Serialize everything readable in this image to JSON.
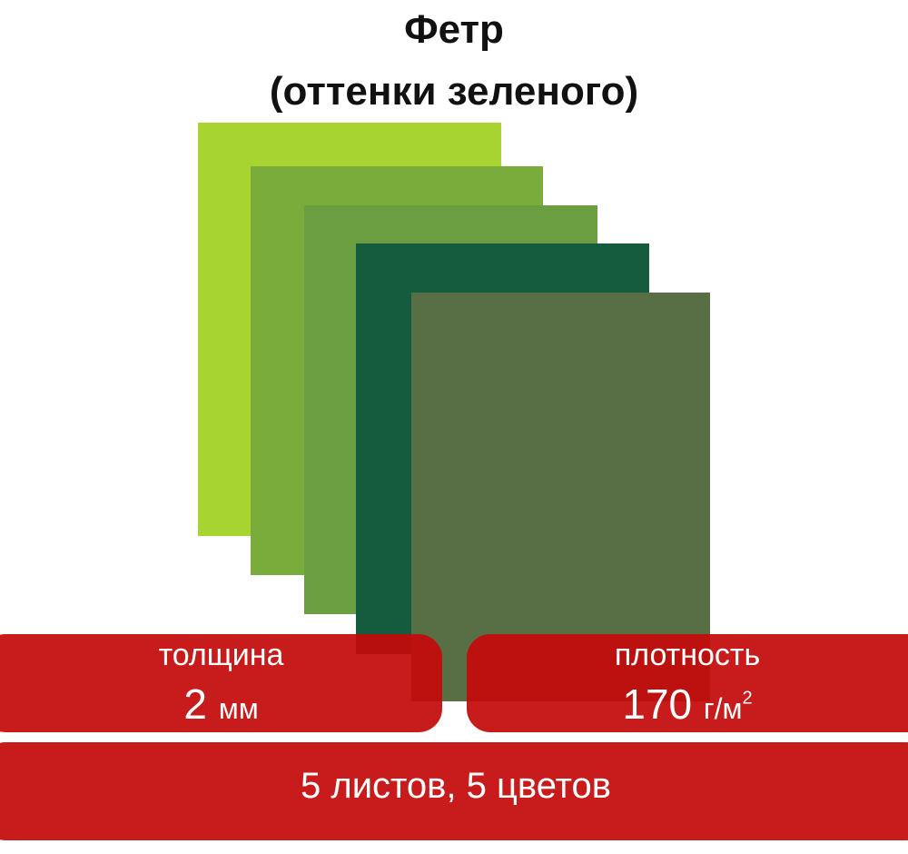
{
  "title_line1": "Фетр",
  "title_line2": "(оттенки зеленого)",
  "sheet_colors": [
    "#a8d431",
    "#7aac3c",
    "#6a9e40",
    "#155c3e",
    "#586f45"
  ],
  "accent_color": "#c40a0a",
  "thickness": {
    "label": "толщина",
    "value": "2",
    "unit": "мм"
  },
  "density": {
    "label": "плотность",
    "value": "170",
    "unit": "г/м",
    "unit_sup": "2"
  },
  "summary": "5 листов, 5 цветов"
}
